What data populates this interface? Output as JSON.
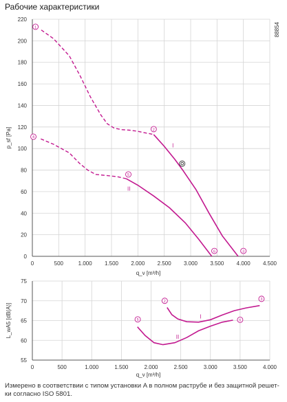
{
  "title": "Рабочие характеристики",
  "figure_id": "88854",
  "caption": "Измерено в соответствии с типом установки A в полном раструбе и без защитной решет-ки согласно ISO 5801.",
  "colors": {
    "curve": "#c2188f",
    "grid": "#d4d4d4",
    "axis": "#555555",
    "marker_dark": "#333333"
  },
  "chart_data": [
    {
      "type": "line",
      "name": "pressure",
      "xlabel": "q_v [m³/h]",
      "ylabel": "p_sf [Pa]",
      "xlim": [
        0,
        4500
      ],
      "ylim": [
        0,
        220
      ],
      "x_ticks": [
        0,
        500,
        1000,
        1500,
        2000,
        2500,
        3000,
        3500,
        4000,
        4500
      ],
      "x_tick_labels": [
        "0",
        "500",
        "1.000",
        "1.500",
        "2.000",
        "2.500",
        "3.000",
        "3.500",
        "4.000",
        "4.500"
      ],
      "y_ticks": [
        0,
        20,
        40,
        60,
        80,
        100,
        120,
        140,
        160,
        180,
        200,
        220
      ],
      "y_tick_labels": [
        "0",
        "20",
        "40",
        "60",
        "80",
        "100",
        "120",
        "140",
        "160",
        "180",
        "200",
        "220"
      ],
      "grid": true,
      "series": [
        {
          "name": "I",
          "dashed": [
            [
              170,
              210
            ],
            [
              400,
              202
            ],
            [
              700,
              186
            ],
            [
              900,
              168
            ],
            [
              1100,
              148
            ],
            [
              1300,
              131
            ],
            [
              1420,
              123
            ],
            [
              1550,
              119
            ],
            [
              1700,
              117.5
            ],
            [
              1850,
              117
            ],
            [
              2000,
              116
            ],
            [
              2300,
              113
            ]
          ],
          "solid": [
            [
              2300,
              113
            ],
            [
              2500,
              102
            ],
            [
              2700,
              90
            ],
            [
              2850,
              80
            ],
            [
              3100,
              62
            ],
            [
              3350,
              40
            ],
            [
              3600,
              19
            ],
            [
              3900,
              0
            ]
          ],
          "label": "I",
          "label_at": [
            2650,
            101
          ]
        },
        {
          "name": "II",
          "dashed": [
            [
              160,
              109
            ],
            [
              400,
              104
            ],
            [
              700,
              96
            ],
            [
              900,
              86
            ],
            [
              1050,
              80
            ],
            [
              1200,
              76
            ],
            [
              1400,
              75
            ],
            [
              1600,
              74
            ],
            [
              1780,
              72
            ]
          ],
          "solid": [
            [
              1780,
              72
            ],
            [
              2000,
              66
            ],
            [
              2300,
              56
            ],
            [
              2600,
              45
            ],
            [
              2900,
              31
            ],
            [
              3150,
              16
            ],
            [
              3400,
              0
            ]
          ],
          "label": "II",
          "label_at": [
            1800,
            61
          ]
        }
      ],
      "markers": [
        {
          "label": "1",
          "x": 60,
          "y": 213
        },
        {
          "label": "4",
          "x": 20,
          "y": 111
        },
        {
          "label": "2",
          "x": 2300,
          "y": 118
        },
        {
          "label": "5",
          "x": 1820,
          "y": 76
        },
        {
          "label": "6",
          "x": 3450,
          "y": 5
        },
        {
          "label": "3",
          "x": 4000,
          "y": 5
        },
        {
          "label": "",
          "x": 2840,
          "y": 86,
          "dark": true
        }
      ]
    },
    {
      "type": "line",
      "name": "sound",
      "xlabel": "q_v [m³/h]",
      "ylabel": "L_wA5 [dB(A)]",
      "xlim": [
        0,
        4000
      ],
      "ylim": [
        55,
        75
      ],
      "x_ticks": [
        0,
        500,
        1000,
        1500,
        2000,
        2500,
        3000,
        3500,
        4000
      ],
      "x_tick_labels": [
        "0",
        "500",
        "1.000",
        "1.500",
        "2.000",
        "2.500",
        "3.000",
        "3.500",
        "4.000"
      ],
      "y_ticks": [
        55,
        60,
        65,
        70,
        75
      ],
      "y_tick_labels": [
        "55",
        "60",
        "65",
        "70",
        "75"
      ],
      "grid": true,
      "series": [
        {
          "name": "I",
          "solid": [
            [
              2270,
              68.3
            ],
            [
              2350,
              66.5
            ],
            [
              2450,
              65.4
            ],
            [
              2600,
              64.7
            ],
            [
              2800,
              64.6
            ],
            [
              3000,
              65.2
            ],
            [
              3200,
              66.4
            ],
            [
              3400,
              67.5
            ],
            [
              3600,
              68.2
            ],
            [
              3830,
              68.8
            ]
          ],
          "label": "I",
          "label_at": [
            2820,
            65.5
          ]
        },
        {
          "name": "II",
          "solid": [
            [
              1770,
              63.4
            ],
            [
              1900,
              61.2
            ],
            [
              2050,
              59.4
            ],
            [
              2200,
              58.9
            ],
            [
              2400,
              59.4
            ],
            [
              2600,
              60.7
            ],
            [
              2800,
              62.4
            ],
            [
              3000,
              63.6
            ],
            [
              3200,
              64.6
            ],
            [
              3380,
              65.1
            ]
          ],
          "label": "II",
          "label_at": [
            2420,
            60.4
          ]
        }
      ],
      "markers": [
        {
          "label": "2",
          "x": 2230,
          "y": 70
        },
        {
          "label": "5",
          "x": 1775,
          "y": 65.3
        },
        {
          "label": "3",
          "x": 3860,
          "y": 70.5
        },
        {
          "label": "6",
          "x": 3500,
          "y": 65.2
        }
      ]
    }
  ]
}
